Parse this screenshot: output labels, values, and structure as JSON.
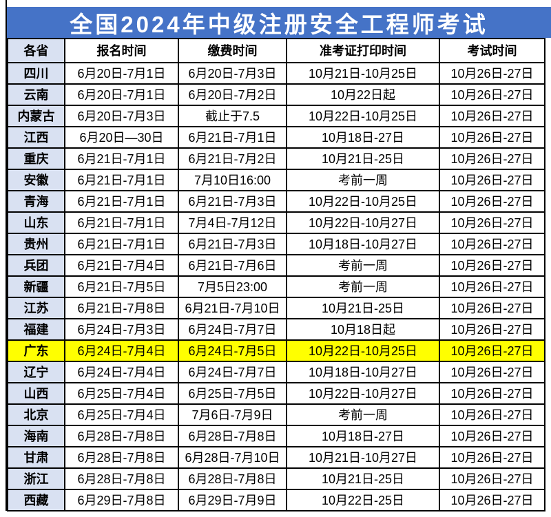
{
  "title": "全国2024年中级注册安全工程师考试",
  "colors": {
    "title_bg": "#4573C7",
    "title_text": "#FFFFFF",
    "province_column_bg": "#D9E1F2",
    "highlight_row_bg": "#FFFF00",
    "border": "#000000"
  },
  "chart_data": {
    "type": "table",
    "title": "全国2024年中级注册安全工程师考试",
    "columns": [
      "各省",
      "报名时间",
      "缴费时间",
      "准考证打印时间",
      "考试时间"
    ],
    "highlighted_row": "广东",
    "rows": [
      {
        "highlight": false,
        "cells": [
          "四川",
          "6月20日-7月1日",
          "6月20日-7月3日",
          "10月21日-10月25日",
          "10月26日-27日"
        ]
      },
      {
        "highlight": false,
        "cells": [
          "云南",
          "6月20日-7月1日",
          "6月20日-7月2日",
          "10月22日起",
          "10月26日-27日"
        ]
      },
      {
        "highlight": false,
        "cells": [
          "内蒙古",
          "6月20日-7月3日",
          "截止于7.5",
          "10月22日-10月25日",
          "10月26日-27日"
        ]
      },
      {
        "highlight": false,
        "cells": [
          "江西",
          "6月20日—30日",
          "6月21日-7月1日",
          "10月18日-27日",
          "10月26日-27日"
        ]
      },
      {
        "highlight": false,
        "cells": [
          "重庆",
          "6月21日-7月1日",
          "6月21日-7月2日",
          "10月21日-25日",
          "10月26日-27日"
        ]
      },
      {
        "highlight": false,
        "cells": [
          "安徽",
          "6月21日-7月1日",
          "7月10日16:00",
          "考前一周",
          "10月26日-27日"
        ]
      },
      {
        "highlight": false,
        "cells": [
          "青海",
          "6月21日-7月1日",
          "6月21日-7月3日",
          "10月22日-10月25日",
          "10月26日-27日"
        ]
      },
      {
        "highlight": false,
        "cells": [
          "山东",
          "6月21日-7月1日",
          "7月4日-7月12日",
          "10月22日-10月27日",
          "10月26日-27日"
        ]
      },
      {
        "highlight": false,
        "cells": [
          "贵州",
          "6月21日-7月1日",
          "6月21日-7月3日",
          "10月18日-10月27日",
          "10月26日-27日"
        ]
      },
      {
        "highlight": false,
        "cells": [
          "兵团",
          "6月21日-7月4日",
          "6月21日-7月6日",
          "考前一周",
          "10月26日-27日"
        ]
      },
      {
        "highlight": false,
        "cells": [
          "新疆",
          "6月21日-7月5日",
          "7月5日23:00",
          "考前一周",
          "10月26日-27日"
        ]
      },
      {
        "highlight": false,
        "cells": [
          "江苏",
          "6月21日-7月8日",
          "6月21日-7月10日",
          "10月21日-25日",
          "10月26日-27日"
        ]
      },
      {
        "highlight": false,
        "cells": [
          "福建",
          "6月24日-7月3日",
          "6月24日-7月7日",
          "10月18日起",
          "10月26日-27日"
        ]
      },
      {
        "highlight": true,
        "cells": [
          "广东",
          "6月24日-7月4日",
          "6月24日-7月5日",
          "10月22日-10月25日",
          "10月26日-27日"
        ]
      },
      {
        "highlight": false,
        "cells": [
          "辽宁",
          "6月24日-7月4日",
          "6月24日-7月7日",
          "10月18日-10月27日",
          "10月26日-27日"
        ]
      },
      {
        "highlight": false,
        "cells": [
          "山西",
          "6月25日-7月4日",
          "6月25日-7月5日",
          "10月22日-10月27日",
          "10月26日-27日"
        ]
      },
      {
        "highlight": false,
        "cells": [
          "北京",
          "6月25日-7月4日",
          "7月6日-7月9日",
          "考前一周",
          "10月26日-27日"
        ]
      },
      {
        "highlight": false,
        "cells": [
          "海南",
          "6月28日-7月8日",
          "6月28日-7月8日",
          "10月18日-27日",
          "10月26日-27日"
        ]
      },
      {
        "highlight": false,
        "cells": [
          "甘肃",
          "6月28日-7月8日",
          "6月28日-7月10日",
          "10月21日-10月27日",
          "10月26日-27日"
        ]
      },
      {
        "highlight": false,
        "cells": [
          "浙江",
          "6月28日-7月8日",
          "6月28日-7月8日",
          "10月21日-25日",
          "10月26日-27日"
        ]
      },
      {
        "highlight": false,
        "cells": [
          "西藏",
          "6月29日-7月8日",
          "6月29日-7月9日",
          "10月22日-25日",
          "10月26日-27日"
        ]
      }
    ]
  }
}
